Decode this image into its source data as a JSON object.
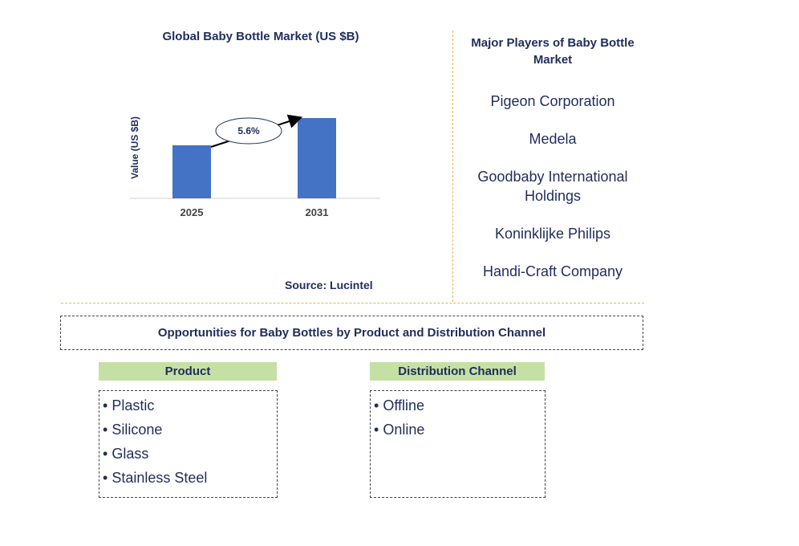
{
  "chart_data": {
    "type": "bar",
    "title": "Global Baby Bottle Market (US $B)",
    "ylabel": "Value (US $B)",
    "categories": [
      "2025",
      "2031"
    ],
    "values": [
      3.3,
      5.0
    ],
    "ylim": [
      0,
      5.0
    ],
    "bar_color": "#4472c4",
    "annotation": {
      "label": "5.6%",
      "type": "arrow"
    },
    "source": "Source: Lucintel"
  },
  "players": {
    "title": "Major Players of Baby Bottle Market",
    "items": [
      "Pigeon Corporation",
      "Medela",
      "Goodbaby International Holdings",
      "Koninklijke Philips",
      "Handi-Craft Company"
    ]
  },
  "opportunities": {
    "title": "Opportunities for Baby Bottles by Product and Distribution Channel",
    "categories": [
      {
        "header": "Product",
        "items": [
          "Plastic",
          "Silicone",
          "Glass",
          "Stainless Steel"
        ]
      },
      {
        "header": "Distribution Channel",
        "items": [
          "Offline",
          "Online"
        ]
      }
    ]
  }
}
